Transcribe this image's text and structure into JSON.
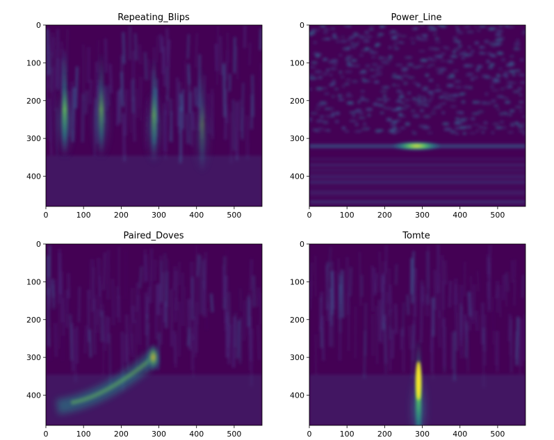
{
  "chart_data": [
    {
      "type": "heatmap",
      "title": "Repeating_Blips",
      "colormap": "viridis",
      "x_ticks": [
        "0",
        "100",
        "200",
        "300",
        "400",
        "500"
      ],
      "y_ticks": [
        "0",
        "100",
        "200",
        "300",
        "400"
      ],
      "xlim": [
        0,
        574
      ],
      "ylim": [
        480,
        0
      ],
      "features": [
        {
          "kind": "vertical_blip",
          "x": 50,
          "y_peak": 200,
          "intensity": 0.85
        },
        {
          "kind": "vertical_blip",
          "x": 147,
          "y_peak": 200,
          "intensity": 0.7
        },
        {
          "kind": "vertical_blip",
          "x": 287,
          "y_peak": 215,
          "intensity": 0.7
        },
        {
          "kind": "vertical_blip",
          "x": 415,
          "y_peak": 240,
          "intensity": 0.45
        }
      ]
    },
    {
      "type": "heatmap",
      "title": "Power_Line",
      "colormap": "viridis",
      "x_ticks": [
        "0",
        "100",
        "200",
        "300",
        "400",
        "500"
      ],
      "y_ticks": [
        "0",
        "100",
        "200",
        "300",
        "400"
      ],
      "xlim": [
        0,
        574
      ],
      "ylim": [
        480,
        0
      ],
      "features": [
        {
          "kind": "horizontal_band",
          "x": 285,
          "y_peak": 320,
          "intensity": 1.0
        }
      ]
    },
    {
      "type": "heatmap",
      "title": "Paired_Doves",
      "colormap": "viridis",
      "x_ticks": [
        "0",
        "100",
        "200",
        "300",
        "400",
        "500"
      ],
      "y_ticks": [
        "0",
        "100",
        "200",
        "300",
        "400"
      ],
      "xlim": [
        0,
        574
      ],
      "ylim": [
        480,
        0
      ],
      "features": [
        {
          "kind": "chirp_arc",
          "x_start": 30,
          "y_start": 420,
          "x_end": 285,
          "y_end": 300,
          "intensity": 0.75
        }
      ]
    },
    {
      "type": "heatmap",
      "title": "Tomte",
      "colormap": "viridis",
      "x_ticks": [
        "0",
        "100",
        "200",
        "300",
        "400",
        "500"
      ],
      "y_ticks": [
        "0",
        "100",
        "200",
        "300",
        "400"
      ],
      "xlim": [
        0,
        574
      ],
      "ylim": [
        480,
        0
      ],
      "features": [
        {
          "kind": "vertical_blip",
          "x": 290,
          "y_peak": 380,
          "intensity": 1.0
        }
      ]
    }
  ]
}
